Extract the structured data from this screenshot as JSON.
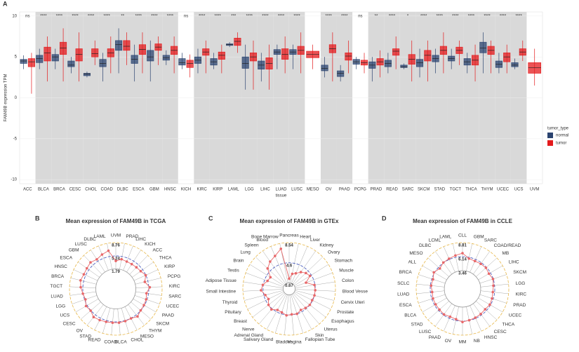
{
  "chart_data": [
    {
      "type": "box",
      "panel_label": "A",
      "x_label": "tissue",
      "y_label": "FAM49B expression TPM",
      "ylim": [
        -10.5,
        10.5
      ],
      "yticks": [
        -10,
        -5,
        0,
        5,
        10
      ],
      "legend_title": "tumor_type",
      "legend": "right",
      "categories": [
        "ACC",
        "BLCA",
        "BRCA",
        "CESC",
        "CHOL",
        "COAD",
        "DLBC",
        "ESCA",
        "GBM",
        "HNSC",
        "KICH",
        "KIRC",
        "KIRP",
        "LAML",
        "LGG",
        "LIHC",
        "LUAD",
        "LUSC",
        "MESO",
        "OV",
        "PAAD",
        "PCPG",
        "PRAD",
        "READ",
        "SARC",
        "SKCM",
        "STAD",
        "TGCT",
        "THCA",
        "THYM",
        "UCEC",
        "UCS",
        "UVM"
      ],
      "significance": [
        "ns",
        "****",
        "****",
        "****",
        "****",
        "****",
        "**",
        "****",
        "****",
        "****",
        "ns",
        "****",
        "****",
        "***",
        "****",
        "****",
        "****",
        "****",
        null,
        "****",
        "****",
        "ns",
        "**",
        "****",
        "*",
        "****",
        "****",
        "****",
        "****",
        "****",
        "****",
        "****",
        null
      ],
      "series": [
        {
          "name": "normal",
          "color": "#2b4470",
          "boxes": [
            [
              3.5,
              4.2,
              4.5,
              4.7,
              5.2
            ],
            [
              3.5,
              4.3,
              4.8,
              5.2,
              6
            ],
            [
              3.5,
              4.5,
              5,
              5.3,
              6
            ],
            [
              3,
              3.8,
              4,
              4.5,
              5
            ],
            [
              2.5,
              2.7,
              2.9,
              3,
              3.2
            ],
            [
              2,
              3.8,
              4.2,
              4.7,
              5.5
            ],
            [
              3,
              5.8,
              6.5,
              7,
              8.5
            ],
            [
              2,
              4.2,
              4.7,
              5.2,
              6.5
            ],
            [
              2,
              4.5,
              5,
              5.8,
              7
            ],
            [
              4,
              4.6,
              4.9,
              5.2,
              5.8
            ],
            [
              3.5,
              4,
              4.3,
              4.8,
              5.5
            ],
            [
              3,
              4.2,
              4.6,
              5,
              6
            ],
            [
              3.5,
              4,
              4.4,
              4.8,
              5.5
            ],
            [
              6.2,
              6.4,
              6.5,
              6.6,
              6.8
            ],
            [
              1,
              3.6,
              4.2,
              5,
              6.5
            ],
            [
              2,
              3.5,
              4,
              4.5,
              5.5
            ],
            [
              3.5,
              5.3,
              5.6,
              5.9,
              6.5
            ],
            [
              3.5,
              5.3,
              5.6,
              5.9,
              6.5
            ],
            null,
            [
              2.5,
              3.3,
              3.6,
              4,
              5
            ],
            [
              2,
              2.6,
              3,
              3.3,
              4
            ],
            [
              3.5,
              4.1,
              4.4,
              4.7,
              5
            ],
            [
              2,
              3.6,
              4,
              4.4,
              5
            ],
            [
              3,
              3.8,
              4.2,
              4.6,
              5.5
            ],
            [
              3.5,
              3.7,
              3.8,
              4,
              4.2
            ],
            [
              2.5,
              3.8,
              4.3,
              4.7,
              6
            ],
            [
              3,
              4.4,
              4.8,
              5.2,
              6
            ],
            [
              3.5,
              4.5,
              4.8,
              5.1,
              6
            ],
            [
              3,
              4,
              4.4,
              4.8,
              5.5
            ],
            [
              3,
              5.5,
              6.1,
              6.8,
              8
            ],
            [
              3,
              3.7,
              4.1,
              4.5,
              5.5
            ],
            [
              3.5,
              3.8,
              4,
              4.3,
              4.8
            ],
            null
          ]
        },
        {
          "name": "tumor",
          "color": "#e41a1c",
          "boxes": [
            [
              0.5,
              3.8,
              4.4,
              4.8,
              5.5
            ],
            [
              2,
              4.5,
              5.5,
              6.2,
              7.5
            ],
            [
              2,
              5.3,
              6.1,
              6.8,
              8.5
            ],
            [
              2,
              4.5,
              5.3,
              6,
              8
            ],
            [
              4,
              5,
              5.4,
              6,
              7
            ],
            [
              3,
              5,
              5.5,
              6,
              7.5
            ],
            [
              4,
              5.8,
              6.3,
              7,
              8
            ],
            [
              3,
              5.3,
              5.9,
              6.5,
              8
            ],
            [
              4,
              5.8,
              6.2,
              6.6,
              7.5
            ],
            [
              3,
              5.3,
              5.8,
              6.3,
              7.5
            ],
            [
              2.5,
              3.7,
              4.2,
              4.6,
              5.3
            ],
            [
              3,
              5.2,
              5.6,
              6,
              7
            ],
            [
              3,
              4.7,
              5.2,
              5.6,
              6.5
            ],
            [
              5.5,
              6.4,
              6.9,
              7.3,
              8
            ],
            [
              1,
              4.5,
              5,
              5.5,
              7
            ],
            [
              1,
              3.5,
              4.2,
              4.9,
              6.5
            ],
            [
              3,
              4.7,
              5.3,
              6,
              7.5
            ],
            [
              3,
              5.3,
              5.8,
              6.3,
              8
            ],
            [
              3.5,
              4.9,
              5.3,
              5.7,
              6.5
            ],
            [
              2,
              5.5,
              6,
              6.5,
              8
            ],
            [
              3,
              4.6,
              5.1,
              5.5,
              7
            ],
            [
              3,
              4,
              4.3,
              4.6,
              5.5
            ],
            [
              2.5,
              4,
              4.4,
              4.8,
              5.8
            ],
            [
              3.5,
              5.2,
              5.7,
              6,
              7.5
            ],
            [
              2,
              4.1,
              4.7,
              5.3,
              7
            ],
            [
              2,
              4.5,
              5.2,
              5.8,
              7
            ],
            [
              3,
              5.3,
              5.8,
              6.3,
              8
            ],
            [
              4,
              5.4,
              5.8,
              6.2,
              7
            ],
            [
              2,
              4,
              4.6,
              5.2,
              6.5
            ],
            [
              3,
              5.3,
              5.8,
              6.3,
              7
            ],
            [
              3,
              4.4,
              5,
              5.5,
              6.5
            ],
            [
              4.5,
              5.2,
              5.6,
              6,
              7
            ],
            [
              1.5,
              3,
              3.7,
              4.3,
              6
            ]
          ]
        }
      ]
    },
    {
      "type": "radar",
      "panel_label": "B",
      "title": "Mean expression of FAM49B in TCGA",
      "color": "#e8686a",
      "rlim": [
        -3.5,
        8.76
      ],
      "rticks": [
        1.79,
        5.24,
        8.76
      ],
      "categories": [
        "UVM",
        "PRAD",
        "LIHC",
        "KICH",
        "ACC",
        "THCA",
        "KIRP",
        "PCPG",
        "KIRC",
        "SARC",
        "UCEC",
        "PAAD",
        "SKCM",
        "THYM",
        "MESO",
        "CHOL",
        "BLCA",
        "COAD",
        "READ",
        "STAD",
        "OV",
        "CESC",
        "UCS",
        "LGG",
        "LUAD",
        "TGCT",
        "BRCA",
        "HNSC",
        "ESCA",
        "GBM",
        "LUSC",
        "DLBC",
        "LAML"
      ],
      "values": [
        3.9,
        4.5,
        4.3,
        4.3,
        4.4,
        4.6,
        5.2,
        4.4,
        5.5,
        4.7,
        5.0,
        5.1,
        5.2,
        5.8,
        5.3,
        5.4,
        5.5,
        5.5,
        5.6,
        5.8,
        6.0,
        5.3,
        5.6,
        5.0,
        5.3,
        5.8,
        6.1,
        5.8,
        5.9,
        6.2,
        5.8,
        6.3,
        6.8
      ]
    },
    {
      "type": "radar",
      "panel_label": "C",
      "title": "Mean expression of FAM49B in GTEx",
      "color": "#e8686a",
      "rlim": [
        -0.5,
        8.54
      ],
      "rticks": [
        0.67,
        4.6,
        8.54
      ],
      "categories": [
        "Pancreas",
        "Heart",
        "Liver",
        "Kidney",
        "Ovary",
        "Stomach",
        "Muscle",
        "Colon",
        "Blood Vesse",
        "Cervix Uteri",
        "Prostate",
        "Esophagus",
        "Uterus",
        "Skin",
        "Fallopian Tube",
        "Vagina",
        "Bladder",
        "Salivary Gland",
        "Adrenal Gland",
        "Nerve",
        "Breast",
        "Pituitary",
        "Thyroid",
        "Small Intestine",
        "Adipose Tissue",
        "Testis",
        "Brain",
        "Lung",
        "Spleen",
        "Blood",
        "Bone Marrow"
      ],
      "values": [
        1.5,
        2.5,
        2.8,
        3.5,
        4.0,
        4.3,
        3.0,
        4.5,
        4.6,
        4.6,
        4.5,
        4.6,
        4.4,
        4.2,
        4.6,
        4.5,
        4.7,
        4.3,
        4.2,
        4.8,
        4.6,
        4.0,
        4.3,
        5.0,
        4.7,
        4.0,
        3.8,
        5.3,
        6.0,
        6.5,
        7.5
      ]
    },
    {
      "type": "radar",
      "panel_label": "D",
      "title": "Mean expression of FAM49B in CCLE",
      "color": "#e8686a",
      "rlim": [
        0,
        8.81
      ],
      "rticks": [
        3.46,
        6.14,
        8.81
      ],
      "categories": [
        "CLL",
        "GBM",
        "SARC",
        "COAD/READ",
        "MB",
        "LIHC",
        "SKCM",
        "LGG",
        "KIRC",
        "PRAD",
        "UCEC",
        "THCA",
        "CESC",
        "HNSC",
        "NB",
        "MM",
        "OV",
        "PAAD",
        "LUSC",
        "STAD",
        "BLCA",
        "ESCA",
        "LUAD",
        "SCLC",
        "BRCA",
        "ALL",
        "MESO",
        "DLBC",
        "LCML",
        "LAML"
      ],
      "values": [
        6.8,
        5.9,
        5.8,
        5.9,
        6.0,
        5.8,
        6.1,
        5.9,
        5.8,
        5.9,
        6.0,
        5.8,
        5.9,
        6.0,
        6.1,
        6.3,
        5.9,
        5.8,
        6.0,
        5.9,
        5.9,
        5.9,
        5.8,
        6.0,
        5.9,
        6.3,
        5.8,
        6.2,
        6.3,
        6.5
      ]
    }
  ]
}
